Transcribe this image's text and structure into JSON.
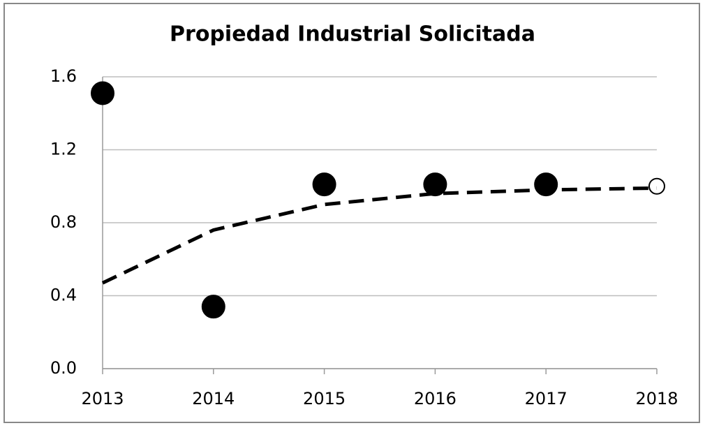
{
  "chart_data": {
    "type": "scatter",
    "title": "Propiedad Industrial Solicitada",
    "xlim": [
      2013,
      2018
    ],
    "xticks": [
      2013,
      2014,
      2015,
      2016,
      2017,
      2018
    ],
    "ylim": [
      0,
      1.6
    ],
    "yticks": [
      {
        "value": 0,
        "label": "0.0"
      },
      0.4,
      0.8,
      1.2,
      1.6
    ],
    "grid": true,
    "series": [
      {
        "color": "#000000",
        "marker": "filled",
        "x": [
          2013,
          2014,
          2015,
          2016,
          2017
        ],
        "values": [
          1.51,
          0.34,
          1.01,
          1.01,
          1.01
        ]
      },
      {
        "color": "#000000",
        "marker": "open",
        "x": [
          2018
        ],
        "values": [
          1.0
        ]
      },
      {
        "color": "#000000",
        "line": "dashed",
        "x": [
          2013,
          2014,
          2015,
          2016,
          2017,
          2018
        ],
        "values": [
          0.47,
          0.76,
          0.9,
          0.96,
          0.98,
          0.99
        ]
      }
    ]
  }
}
